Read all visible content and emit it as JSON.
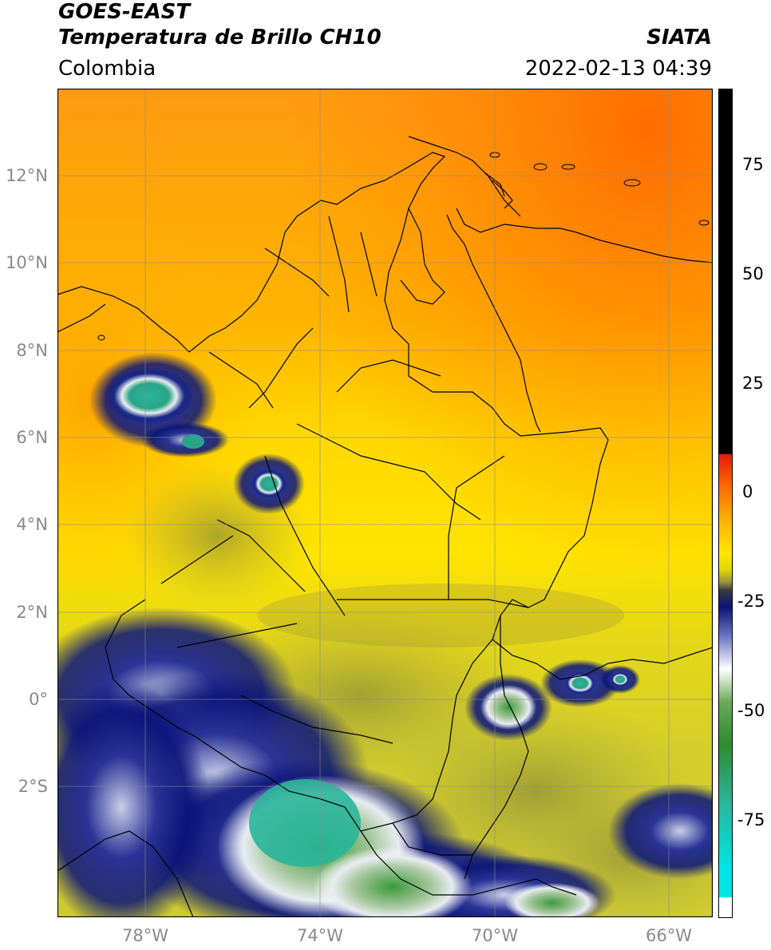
{
  "header": {
    "title_line1": "GOES-EAST",
    "title_line2": "Temperatura de Brillo CH10",
    "agency": "SIATA",
    "region": "Colombia",
    "timestamp": "2022-02-13 04:39"
  },
  "map": {
    "extent": {
      "lon_min": -80,
      "lon_max": -65,
      "lat_min": -5,
      "lat_max": 14
    },
    "latitude_labels": [
      "12°N",
      "10°N",
      "8°N",
      "6°N",
      "4°N",
      "2°N",
      "0°",
      "2°S"
    ],
    "latitude_values": [
      12,
      10,
      8,
      6,
      4,
      2,
      0,
      -2
    ],
    "longitude_labels": [
      "78°W",
      "74°W",
      "70°W",
      "66°W"
    ],
    "longitude_values": [
      -78,
      -74,
      -70,
      -66
    ],
    "grid": true
  },
  "colorbar": {
    "range": [
      -95,
      90
    ],
    "tick_labels": [
      "75",
      "50",
      "25",
      "0",
      "-25",
      "-50",
      "-75"
    ],
    "tick_values": [
      75,
      50,
      25,
      0,
      -25,
      -50,
      -75
    ],
    "colors": {
      "black": "#000000",
      "red": "#e8190a",
      "orange": "#ff8c00",
      "yellow": "#ffe600",
      "olive": "#c8c43c",
      "navy": "#0a1478",
      "white": "#ffffff",
      "green": "#2e8b2e",
      "teal": "#2ab59a",
      "cyan": "#00e5e5"
    }
  }
}
